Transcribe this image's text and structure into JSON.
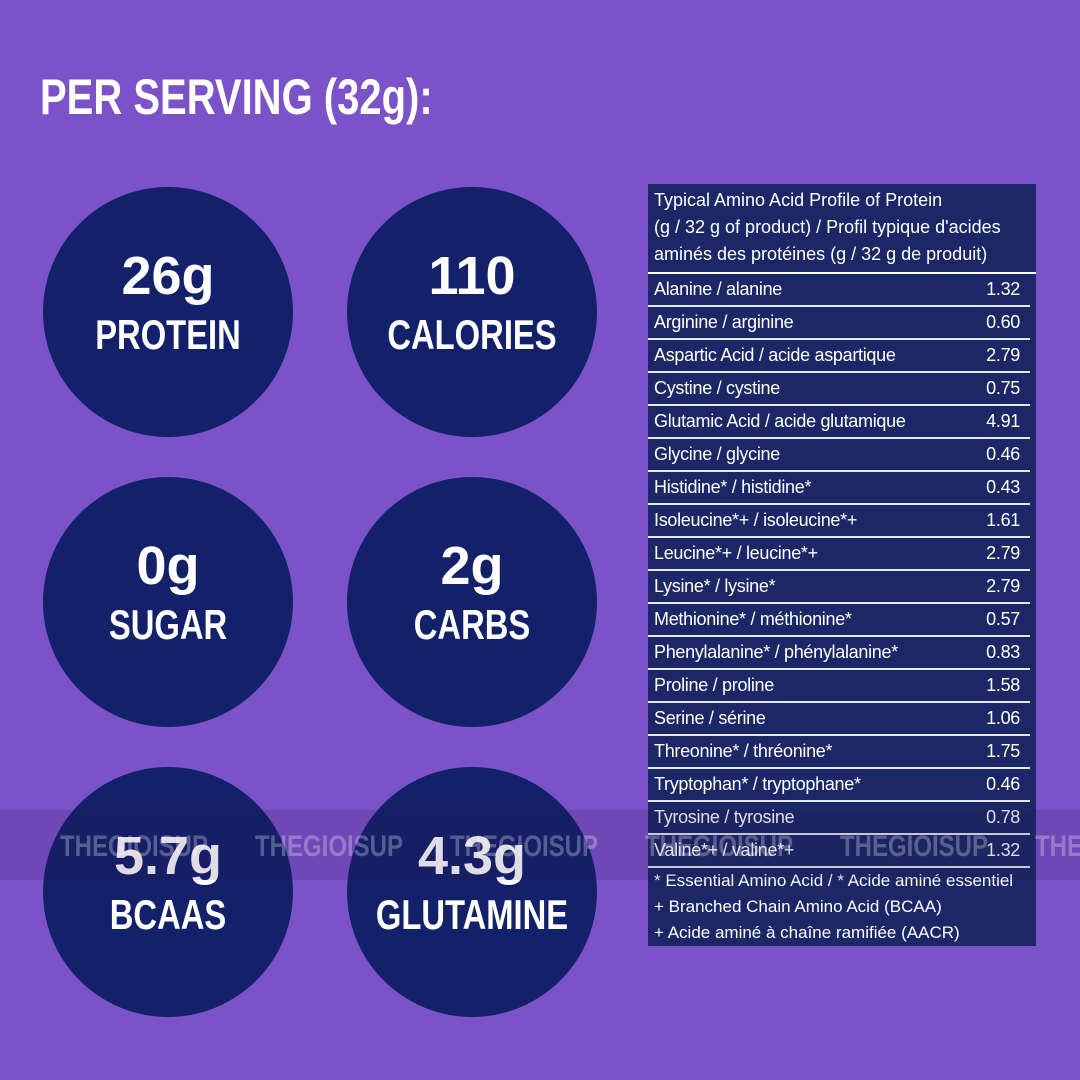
{
  "header": {
    "title": "PER SERVING (32g):"
  },
  "circles": [
    {
      "value": "26g",
      "label": "PROTEIN"
    },
    {
      "value": "110",
      "label": "CALORIES"
    },
    {
      "value": "0g",
      "label": "SUGAR"
    },
    {
      "value": "2g",
      "label": "CARBS"
    },
    {
      "value": "5.7g",
      "label": "BCAAS"
    },
    {
      "value": "4.3g",
      "label": "GLUTAMINE"
    }
  ],
  "table": {
    "title": [
      "Typical Amino Acid Profile of Protein",
      "(g / 32 g of product) / Profil typique d'acides",
      "aminés des protéines (g / 32 g de produit)"
    ],
    "rows": [
      [
        "Alanine / alanine",
        "1.32"
      ],
      [
        "Arginine / arginine",
        "0.60"
      ],
      [
        "Aspartic Acid / acide aspartique",
        "2.79"
      ],
      [
        "Cystine / cystine",
        "0.75"
      ],
      [
        "Glutamic Acid / acide glutamique",
        "4.91"
      ],
      [
        "Glycine / glycine",
        "0.46"
      ],
      [
        "Histidine* / histidine*",
        "0.43"
      ],
      [
        "Isoleucine*+ / isoleucine*+",
        "1.61"
      ],
      [
        "Leucine*+ / leucine*+",
        "2.79"
      ],
      [
        "Lysine* / lysine*",
        "2.79"
      ],
      [
        "Methionine* / méthionine*",
        "0.57"
      ],
      [
        "Phenylalanine* / phénylalanine*",
        "0.83"
      ],
      [
        "Proline / proline",
        "1.58"
      ],
      [
        "Serine / sérine",
        "1.06"
      ],
      [
        "Threonine* / thréonine*",
        "1.75"
      ],
      [
        "Tryptophan* / tryptophane*",
        "0.46"
      ],
      [
        "Tyrosine / tyrosine",
        "0.78"
      ],
      [
        "Valine*+ / valine*+",
        "1.32"
      ]
    ],
    "footnotes": [
      "* Essential Amino Acid / * Acide aminé essentiel",
      "+ Branched Chain Amino Acid (BCAA)",
      "+ Acide aminé à chaîne ramifiée (AACR)"
    ]
  },
  "watermark": "THEGIOISUP"
}
